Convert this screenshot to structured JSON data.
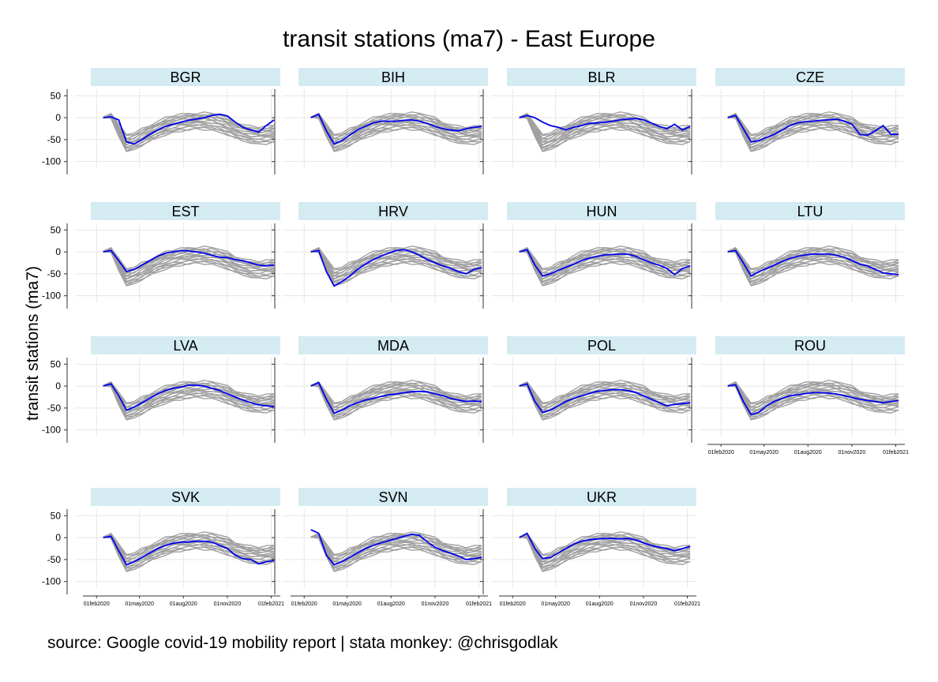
{
  "chart_data": {
    "type": "line",
    "title": "transit stations (ma7) - East Europe",
    "ylabel": "transit stations (ma7)",
    "caption": "source: Google covid-19 mobility report | stata monkey: @chrisgodlak",
    "ylim": [
      -115,
      65
    ],
    "yticks": [
      50,
      0,
      -50,
      -100
    ],
    "ytick_labels": [
      "50",
      "0",
      "-50",
      "-100"
    ],
    "xlim": [
      "2020-01-20",
      "2021-02-20"
    ],
    "xticks": [
      "2020-02-01",
      "2020-05-01",
      "2020-08-01",
      "2020-11-01",
      "2021-02-01"
    ],
    "xtick_labels": [
      "01feb2020",
      "01may2020",
      "01aug2020",
      "01nov2020",
      "01feb2021"
    ],
    "grid": true,
    "highlight_color": "#0000ee",
    "background_color": "#a0a0a0",
    "strip_color": "#d4ebf2",
    "panels": [
      {
        "name": "BGR",
        "values": [
          0,
          2,
          -5,
          -55,
          -60,
          -50,
          -38,
          -28,
          -20,
          -15,
          -10,
          -6,
          -3,
          0,
          5,
          8,
          4,
          -10,
          -22,
          -28,
          -33,
          -18,
          -5
        ]
      },
      {
        "name": "BIH",
        "values": [
          0,
          8,
          -30,
          -60,
          -52,
          -40,
          -28,
          -20,
          -12,
          -8,
          -8,
          -8,
          -6,
          -5,
          -8,
          -13,
          -20,
          -25,
          -28,
          -30,
          -25,
          -22,
          -20
        ]
      },
      {
        "name": "BLR",
        "values": [
          0,
          5,
          0,
          -10,
          -18,
          -22,
          -28,
          -22,
          -18,
          -13,
          -12,
          -10,
          -8,
          -5,
          -3,
          -2,
          -5,
          -12,
          -20,
          -25,
          -15,
          -28,
          -20
        ]
      },
      {
        "name": "CZE",
        "values": [
          0,
          5,
          -25,
          -55,
          -52,
          -45,
          -38,
          -28,
          -18,
          -12,
          -9,
          -8,
          -6,
          -5,
          -3,
          -8,
          -15,
          -38,
          -40,
          -30,
          -18,
          -38,
          -38
        ]
      },
      {
        "name": "EST",
        "values": [
          0,
          3,
          -20,
          -45,
          -40,
          -30,
          -20,
          -10,
          -3,
          0,
          3,
          2,
          0,
          -3,
          -8,
          -12,
          -13,
          -18,
          -20,
          -25,
          -30,
          -32,
          -30
        ]
      },
      {
        "name": "HRV",
        "values": [
          0,
          3,
          -45,
          -78,
          -68,
          -55,
          -40,
          -28,
          -18,
          -10,
          -3,
          3,
          5,
          0,
          -8,
          -18,
          -25,
          -32,
          -38,
          -45,
          -50,
          -40,
          -36
        ]
      },
      {
        "name": "HUN",
        "values": [
          0,
          5,
          -30,
          -55,
          -50,
          -42,
          -35,
          -28,
          -20,
          -14,
          -10,
          -7,
          -6,
          -5,
          -5,
          -10,
          -18,
          -25,
          -30,
          -38,
          -52,
          -38,
          -32
        ]
      },
      {
        "name": "LTU",
        "values": [
          0,
          3,
          -25,
          -55,
          -45,
          -38,
          -30,
          -22,
          -15,
          -10,
          -7,
          -5,
          -5,
          -5,
          -8,
          -12,
          -20,
          -28,
          -32,
          -40,
          -48,
          -50,
          -52
        ]
      },
      {
        "name": "LVA",
        "values": [
          0,
          5,
          -22,
          -55,
          -48,
          -38,
          -28,
          -18,
          -10,
          -5,
          -2,
          2,
          2,
          0,
          -5,
          -10,
          -18,
          -25,
          -32,
          -38,
          -43,
          -45,
          -47
        ]
      },
      {
        "name": "MDA",
        "values": [
          0,
          8,
          -30,
          -62,
          -55,
          -45,
          -38,
          -32,
          -28,
          -24,
          -20,
          -18,
          -15,
          -13,
          -12,
          -13,
          -18,
          -22,
          -28,
          -32,
          -35,
          -34,
          -35
        ]
      },
      {
        "name": "POL",
        "values": [
          0,
          5,
          -35,
          -60,
          -55,
          -45,
          -35,
          -28,
          -22,
          -17,
          -12,
          -10,
          -8,
          -8,
          -10,
          -15,
          -22,
          -30,
          -38,
          -45,
          -42,
          -40,
          -38
        ]
      },
      {
        "name": "ROU",
        "values": [
          0,
          3,
          -35,
          -65,
          -60,
          -45,
          -35,
          -28,
          -22,
          -20,
          -17,
          -15,
          -15,
          -16,
          -18,
          -22,
          -26,
          -30,
          -33,
          -35,
          -38,
          -35,
          -33
        ]
      },
      {
        "name": "SVK",
        "values": [
          0,
          3,
          -30,
          -62,
          -55,
          -45,
          -35,
          -25,
          -18,
          -13,
          -10,
          -10,
          -8,
          -8,
          -10,
          -18,
          -25,
          -40,
          -48,
          -50,
          -60,
          -55,
          -52
        ]
      },
      {
        "name": "SVN",
        "values": [
          18,
          10,
          -40,
          -62,
          -55,
          -45,
          -35,
          -25,
          -18,
          -12,
          -7,
          -2,
          3,
          8,
          5,
          -10,
          -22,
          -30,
          -35,
          -42,
          -50,
          -48,
          -45
        ]
      },
      {
        "name": "UKR",
        "values": [
          0,
          10,
          -25,
          -48,
          -45,
          -35,
          -25,
          -15,
          -8,
          -5,
          -3,
          -2,
          -2,
          -3,
          -2,
          -5,
          -12,
          -18,
          -22,
          -25,
          -30,
          -25,
          -20
        ]
      }
    ]
  }
}
